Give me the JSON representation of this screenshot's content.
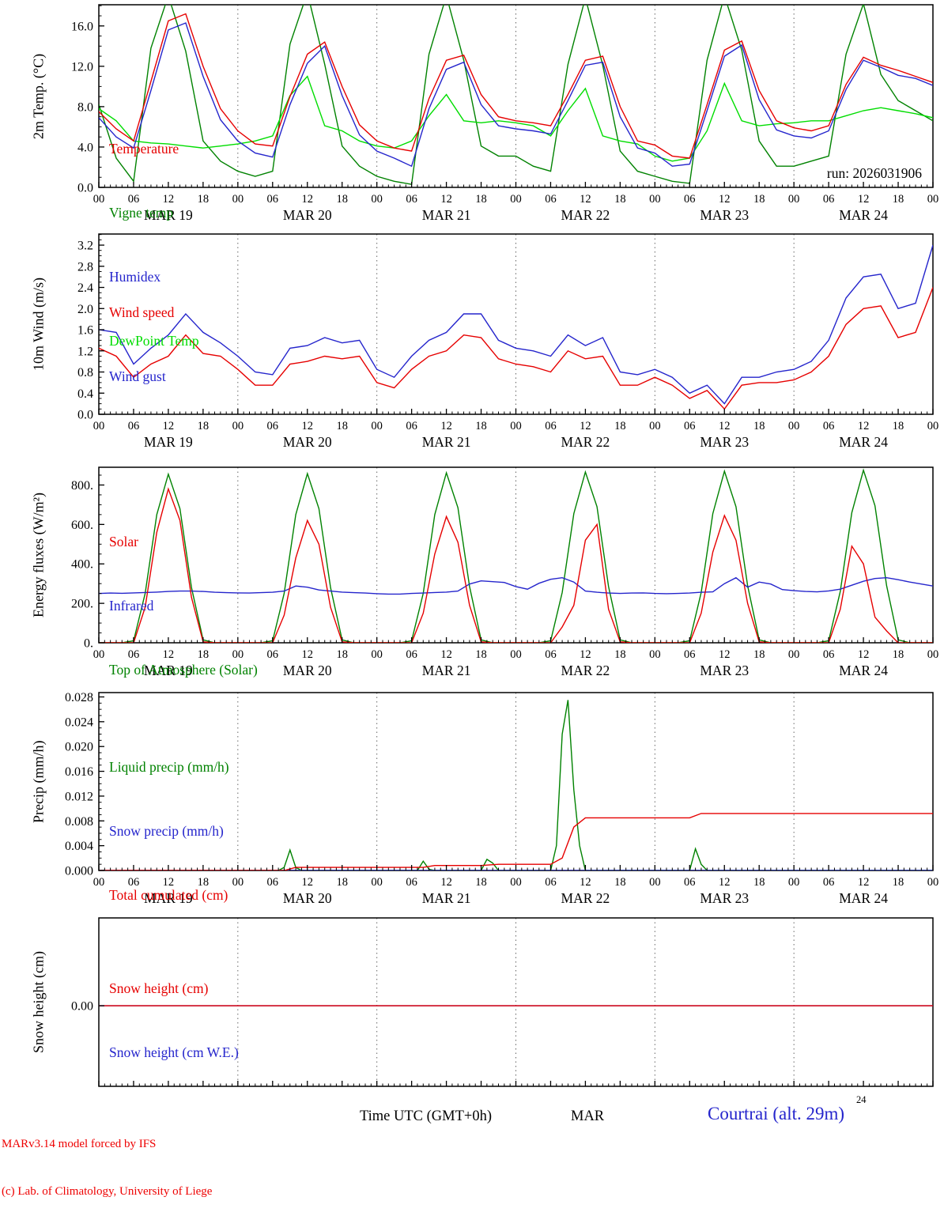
{
  "run_label": "run: 2026031906",
  "footer": {
    "left_line1": "MARv3.14 model forced by IFS",
    "left_line2": "(c) Lab. of Climatology, University of Liege",
    "center": "Time UTC (GMT+0h)",
    "month": "MAR",
    "right": "Courtrai (alt. 29m)",
    "right_sup": "24"
  },
  "x_axis": {
    "hour_labels": [
      "00",
      "06",
      "12",
      "18",
      "00",
      "06",
      "12",
      "18",
      "00",
      "06",
      "12",
      "18",
      "00",
      "06",
      "12",
      "18",
      "00",
      "06",
      "12",
      "18",
      "00",
      "06",
      "12",
      "18",
      "00"
    ],
    "day_labels": [
      "MAR 19",
      "MAR 20",
      "MAR 21",
      "MAR 22",
      "MAR 23",
      "MAR 24"
    ],
    "hours_total": 144
  },
  "chart_data": [
    {
      "type": "line",
      "ylabel": "2m Temp. (°C)",
      "ylim": [
        0,
        18.1
      ],
      "yticks": {
        "major": [
          0,
          4,
          8,
          12,
          16
        ],
        "labels": [
          "0.0",
          "4.0",
          "8.0",
          "12.0",
          "16.0"
        ],
        "minor_step": 1
      },
      "show_x_labels": true,
      "legend": [
        {
          "label": "Temperature",
          "color": "#e60000"
        },
        {
          "label": "Vigne temp",
          "color": "#008200"
        },
        {
          "label": "Humidex",
          "color": "#2525cc"
        },
        {
          "label": "DewPoint Temp",
          "color": "#00dd00"
        }
      ],
      "series": [
        {
          "name": "Vigne temp",
          "color": "#008200",
          "step": 3,
          "values": [
            8.2,
            2.9,
            0.6,
            13.8,
            19.0,
            13.5,
            4.6,
            2.6,
            1.6,
            1.1,
            1.6,
            14.2,
            19.3,
            12.2,
            4.1,
            2.1,
            1.1,
            0.6,
            0.3,
            13.2,
            19.0,
            12.6,
            4.1,
            3.1,
            3.1,
            2.1,
            1.6,
            12.2,
            18.8,
            12.1,
            3.6,
            1.6,
            1.1,
            0.6,
            0.4,
            12.6,
            19.0,
            13.6,
            4.6,
            2.1,
            2.1,
            2.6,
            3.1,
            13.2,
            18.2,
            11.2,
            8.6,
            7.6,
            6.6
          ]
        },
        {
          "name": "DewPoint Temp",
          "color": "#00dd00",
          "step": 3,
          "values": [
            7.8,
            6.6,
            4.6,
            4.4,
            4.3,
            4.1,
            3.9,
            4.1,
            4.3,
            4.6,
            5.1,
            9.1,
            11.0,
            6.1,
            5.6,
            4.6,
            4.1,
            3.9,
            4.6,
            7.1,
            9.2,
            6.6,
            6.4,
            6.6,
            6.4,
            6.1,
            5.1,
            7.6,
            9.8,
            5.1,
            4.6,
            4.3,
            3.1,
            2.6,
            2.9,
            5.6,
            10.3,
            6.6,
            6.1,
            6.3,
            6.4,
            6.6,
            6.6,
            7.1,
            7.6,
            7.9,
            7.6,
            7.3,
            6.9
          ]
        },
        {
          "name": "Humidex",
          "color": "#2525cc",
          "step": 3,
          "values": [
            6.9,
            5.0,
            3.9,
            9.6,
            15.6,
            16.3,
            11.0,
            6.7,
            4.6,
            3.4,
            3.0,
            8.2,
            12.3,
            14.0,
            9.1,
            5.2,
            3.6,
            2.9,
            2.1,
            7.8,
            11.7,
            12.4,
            8.2,
            6.1,
            5.8,
            5.6,
            5.3,
            8.6,
            12.1,
            12.4,
            7.0,
            3.9,
            3.4,
            2.1,
            2.3,
            7.6,
            13.0,
            14.1,
            8.7,
            5.7,
            5.1,
            4.9,
            5.6,
            9.7,
            12.6,
            11.9,
            11.1,
            10.8,
            10.1
          ]
        },
        {
          "name": "Temperature",
          "color": "#e60000",
          "step": 3,
          "values": [
            7.5,
            5.8,
            4.6,
            10.5,
            16.5,
            17.2,
            12.0,
            7.8,
            5.6,
            4.3,
            4.1,
            9.0,
            13.2,
            14.4,
            10.0,
            6.2,
            4.6,
            3.9,
            3.6,
            8.8,
            12.6,
            13.1,
            9.2,
            7.0,
            6.6,
            6.4,
            6.1,
            9.2,
            12.6,
            13.0,
            8.0,
            4.6,
            4.2,
            3.1,
            2.9,
            8.2,
            13.6,
            14.5,
            9.6,
            6.6,
            5.9,
            5.6,
            6.1,
            10.2,
            12.9,
            12.1,
            11.6,
            11.0,
            10.4
          ]
        }
      ]
    },
    {
      "type": "line",
      "ylabel": "10m Wind (m/s)",
      "ylim": [
        0,
        3.41
      ],
      "yticks": {
        "major": [
          0,
          0.4,
          0.8,
          1.2,
          1.6,
          2.0,
          2.4,
          2.8,
          3.2
        ],
        "labels": [
          "0.0",
          "0.4",
          "0.8",
          "1.2",
          "1.6",
          "2.0",
          "2.4",
          "2.8",
          "3.2"
        ],
        "minor_step": 0.1
      },
      "show_x_labels": true,
      "legend": [
        {
          "label": "Wind speed",
          "color": "#e60000"
        },
        {
          "label": "Wind gust",
          "color": "#2525cc"
        }
      ],
      "series": [
        {
          "name": "Wind gust",
          "color": "#2525cc",
          "step": 3,
          "values": [
            1.6,
            1.55,
            0.95,
            1.25,
            1.5,
            1.9,
            1.55,
            1.35,
            1.1,
            0.8,
            0.75,
            1.25,
            1.3,
            1.45,
            1.35,
            1.4,
            0.85,
            0.7,
            1.1,
            1.4,
            1.55,
            1.9,
            1.9,
            1.4,
            1.25,
            1.2,
            1.1,
            1.5,
            1.3,
            1.45,
            0.8,
            0.75,
            0.85,
            0.7,
            0.4,
            0.55,
            0.2,
            0.7,
            0.7,
            0.8,
            0.85,
            1.0,
            1.4,
            2.2,
            2.6,
            2.65,
            2.0,
            2.1,
            3.2
          ]
        },
        {
          "name": "Wind speed",
          "color": "#e60000",
          "step": 3,
          "values": [
            1.25,
            1.1,
            0.7,
            0.95,
            1.1,
            1.5,
            1.15,
            1.1,
            0.85,
            0.55,
            0.55,
            0.95,
            1.0,
            1.1,
            1.05,
            1.1,
            0.6,
            0.5,
            0.85,
            1.1,
            1.2,
            1.5,
            1.45,
            1.05,
            0.95,
            0.9,
            0.8,
            1.2,
            1.05,
            1.1,
            0.55,
            0.55,
            0.7,
            0.55,
            0.3,
            0.45,
            0.1,
            0.55,
            0.6,
            0.6,
            0.65,
            0.8,
            1.1,
            1.7,
            2.0,
            2.05,
            1.45,
            1.55,
            2.4
          ]
        }
      ]
    },
    {
      "type": "line",
      "ylabel": "Energy fluxes (W/m²)",
      "ylim": [
        0,
        890
      ],
      "yticks": {
        "major": [
          0,
          200,
          400,
          600,
          800
        ],
        "labels": [
          "0.",
          "200.",
          "400.",
          "600.",
          "800."
        ],
        "minor_step": 50
      },
      "show_x_labels": true,
      "legend": [
        {
          "label": "Solar",
          "color": "#e60000"
        },
        {
          "label": "Infrared",
          "color": "#2525cc"
        },
        {
          "label": "Top of Atmosphere (Solar)",
          "color": "#008200"
        }
      ],
      "series": [
        {
          "name": "Top of Atmosphere",
          "color": "#008200",
          "step": 2,
          "values": [
            0,
            0,
            0,
            10,
            250,
            650,
            855,
            680,
            280,
            15,
            0,
            0,
            0,
            0,
            0,
            10,
            250,
            650,
            858,
            680,
            280,
            15,
            0,
            0,
            0,
            0,
            0,
            10,
            250,
            650,
            862,
            685,
            285,
            15,
            0,
            0,
            0,
            0,
            0,
            10,
            255,
            655,
            866,
            690,
            285,
            15,
            0,
            0,
            0,
            0,
            0,
            10,
            255,
            655,
            870,
            690,
            290,
            15,
            0,
            0,
            0,
            0,
            0,
            10,
            260,
            660,
            875,
            695,
            290,
            15,
            0,
            0,
            0
          ]
        },
        {
          "name": "Infrared",
          "color": "#2525cc",
          "step": 2,
          "values": [
            250,
            252,
            251,
            253,
            255,
            257,
            260,
            262,
            262,
            260,
            256,
            254,
            253,
            252,
            254,
            256,
            262,
            288,
            282,
            268,
            262,
            257,
            254,
            252,
            249,
            247,
            247,
            250,
            252,
            255,
            257,
            262,
            298,
            314,
            310,
            306,
            285,
            272,
            302,
            322,
            330,
            308,
            262,
            256,
            252,
            250,
            252,
            253,
            250,
            249,
            250,
            252,
            256,
            258,
            300,
            330,
            282,
            308,
            298,
            270,
            264,
            260,
            258,
            263,
            272,
            292,
            312,
            326,
            330,
            320,
            308,
            298,
            288
          ]
        },
        {
          "name": "Solar",
          "color": "#e60000",
          "step": 2,
          "values": [
            0,
            0,
            0,
            0,
            180,
            560,
            780,
            620,
            230,
            5,
            0,
            0,
            0,
            0,
            0,
            0,
            140,
            430,
            620,
            500,
            180,
            5,
            0,
            0,
            0,
            0,
            0,
            0,
            150,
            450,
            640,
            510,
            190,
            5,
            0,
            0,
            0,
            0,
            0,
            0,
            80,
            190,
            520,
            600,
            170,
            5,
            0,
            0,
            0,
            0,
            0,
            0,
            150,
            460,
            645,
            520,
            200,
            5,
            0,
            0,
            0,
            0,
            0,
            0,
            170,
            490,
            400,
            130,
            60,
            0,
            0,
            0,
            0
          ]
        }
      ]
    },
    {
      "type": "line",
      "ylabel": "Precip (mm/h)",
      "ylim": [
        0,
        0.0287
      ],
      "yticks": {
        "major": [
          0,
          0.004,
          0.008,
          0.012,
          0.016,
          0.02,
          0.024,
          0.028
        ],
        "labels": [
          "0.000",
          "0.004",
          "0.008",
          "0.012",
          "0.016",
          "0.020",
          "0.024",
          "0.028"
        ],
        "minor_step": 0.001
      },
      "show_x_labels": true,
      "legend": [
        {
          "label": "Liquid precip (mm/h)",
          "color": "#008200"
        },
        {
          "label": "Snow precip (mm/h)",
          "color": "#2525cc"
        },
        {
          "label": "Total cumulated (cm)",
          "color": "#e60000"
        }
      ],
      "series": [
        {
          "name": "Liquid precip",
          "color": "#008200",
          "x": [
            0,
            31,
            32,
            33,
            34,
            35,
            55,
            56,
            57,
            58,
            66,
            67,
            68,
            69,
            78,
            79,
            80,
            81,
            82,
            83,
            84,
            102,
            103,
            104,
            105,
            144
          ],
          "y": [
            0,
            0,
            0.0005,
            0.0033,
            0.0005,
            0,
            0,
            0.0015,
            0.0002,
            0,
            0,
            0.0018,
            0.0012,
            0,
            0,
            0.004,
            0.022,
            0.0275,
            0.013,
            0.004,
            0,
            0,
            0.0035,
            0.001,
            0,
            0
          ]
        },
        {
          "name": "Snow precip",
          "color": "#2525cc",
          "x": [
            0,
            144
          ],
          "y": [
            0,
            0
          ]
        },
        {
          "name": "Total cumulated",
          "color": "#e60000",
          "x": [
            0,
            32,
            34,
            56,
            58,
            66,
            69,
            78,
            80,
            82,
            84,
            102,
            104,
            144
          ],
          "y": [
            0,
            0,
            0.0005,
            0.0005,
            0.0008,
            0.0008,
            0.001,
            0.001,
            0.002,
            0.007,
            0.0085,
            0.0085,
            0.0092,
            0.0092
          ]
        }
      ]
    },
    {
      "type": "line",
      "ylabel": "Snow height (cm)",
      "ylim": [
        -1,
        1.09
      ],
      "yticks": {
        "major": [
          0
        ],
        "labels": [
          "0.00"
        ],
        "minor_step": 0
      },
      "show_x_labels": false,
      "legend": [
        {
          "label": "Snow height (cm)",
          "color": "#e60000"
        },
        {
          "label": "Snow height (cm W.E.)",
          "color": "#2525cc"
        }
      ],
      "series": [
        {
          "name": "Snow height WE",
          "color": "#2525cc",
          "x": [
            0,
            144
          ],
          "y": [
            0,
            0
          ]
        },
        {
          "name": "Snow height",
          "color": "#e60000",
          "x": [
            0,
            144
          ],
          "y": [
            0,
            0
          ]
        }
      ]
    }
  ]
}
